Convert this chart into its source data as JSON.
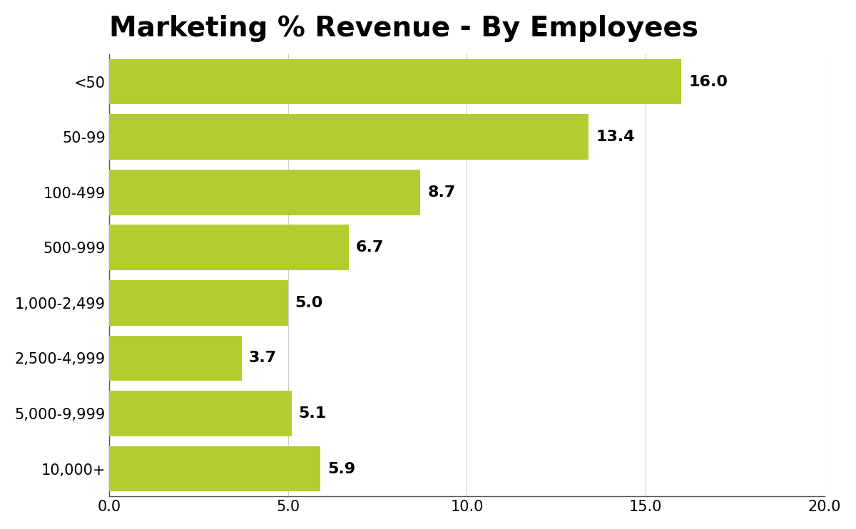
{
  "title": "Marketing % Revenue - By Employees",
  "categories": [
    "<50",
    "50-99",
    "100-499",
    "500-999",
    "1,000-2,499",
    "2,500-4,999",
    "5,000-9,999",
    "10,000+"
  ],
  "values": [
    16.0,
    13.4,
    8.7,
    6.7,
    5.0,
    3.7,
    5.1,
    5.9
  ],
  "bar_color": "#b5cc30",
  "background_color": "#ffffff",
  "xlim": [
    0,
    20.0
  ],
  "xticks": [
    0.0,
    5.0,
    10.0,
    15.0,
    20.0
  ],
  "xtick_labels": [
    "0.0",
    "5.0",
    "10.0",
    "15.0",
    "20.0"
  ],
  "title_fontsize": 28,
  "tick_fontsize": 15,
  "annotation_fontsize": 16,
  "grid_color": "#cccccc",
  "bar_height": 0.82
}
